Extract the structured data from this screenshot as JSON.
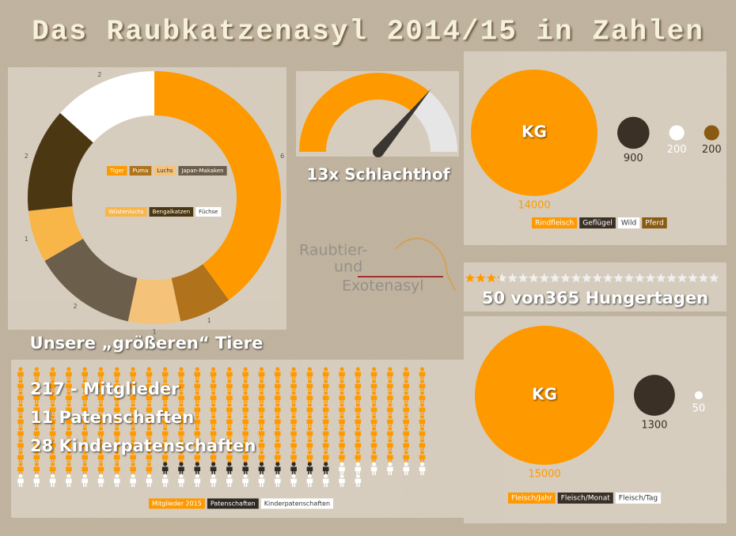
{
  "title": "Das Raubkatzenasyl 2014/15 in Zahlen",
  "logo": [
    "Raubtier-",
    "und",
    "Exotenasyl"
  ],
  "chart_data": [
    {
      "type": "donut",
      "title": "Unsere „größeren“ Tiere",
      "categories": [
        "Tiger",
        "Puma",
        "Luchs",
        "Japan-Makaken",
        "Wüstenluchs",
        "Bengalkatzen",
        "Füchse"
      ],
      "values": [
        6,
        1,
        1,
        2,
        1,
        2,
        2
      ],
      "colors": [
        "#ff9900",
        "#b0721a",
        "#f5c27a",
        "#6b5e4b",
        "#f8b548",
        "#4b3712",
        "#ffffff"
      ]
    },
    {
      "type": "gauge",
      "value": 13,
      "value_label": "13x Schlachthof",
      "ylim": [
        0,
        18
      ],
      "color": "#ff9900"
    },
    {
      "type": "bubble",
      "unit": "KG",
      "categories": [
        "Rindfleisch",
        "Geflügel",
        "Wild",
        "Pferd"
      ],
      "values": [
        14000,
        900,
        200,
        200
      ],
      "colors": [
        "#ff9900",
        "#3a3026",
        "#ffffff",
        "#8a5a10"
      ]
    },
    {
      "type": "rating",
      "value": 50,
      "total": 365,
      "label": "50 von365 Hungertagen",
      "color": "#ff9900"
    },
    {
      "type": "bubble",
      "unit": "KG",
      "categories": [
        "Fleisch/Jahr",
        "Fleisch/Monat",
        "Fleisch/Tag"
      ],
      "values": [
        15000,
        1300,
        50
      ],
      "colors": [
        "#ff9900",
        "#3a3026",
        "#ffffff"
      ]
    },
    {
      "type": "pictogram",
      "series": [
        {
          "name": "Mitglieder 2015",
          "color": "#ff9900",
          "values": [
            217
          ],
          "value_labels": [
            "217 - Mitglieder"
          ]
        },
        {
          "name": "Patenschaften",
          "color": "#2e2a24",
          "values": [
            11
          ],
          "value_labels": [
            "11 Patenschaften"
          ]
        },
        {
          "name": "Kinderpatenschaften",
          "color": "#ffffff",
          "values": [
            28
          ],
          "value_labels": [
            "28 Kinderpatenschaften"
          ]
        }
      ]
    }
  ]
}
